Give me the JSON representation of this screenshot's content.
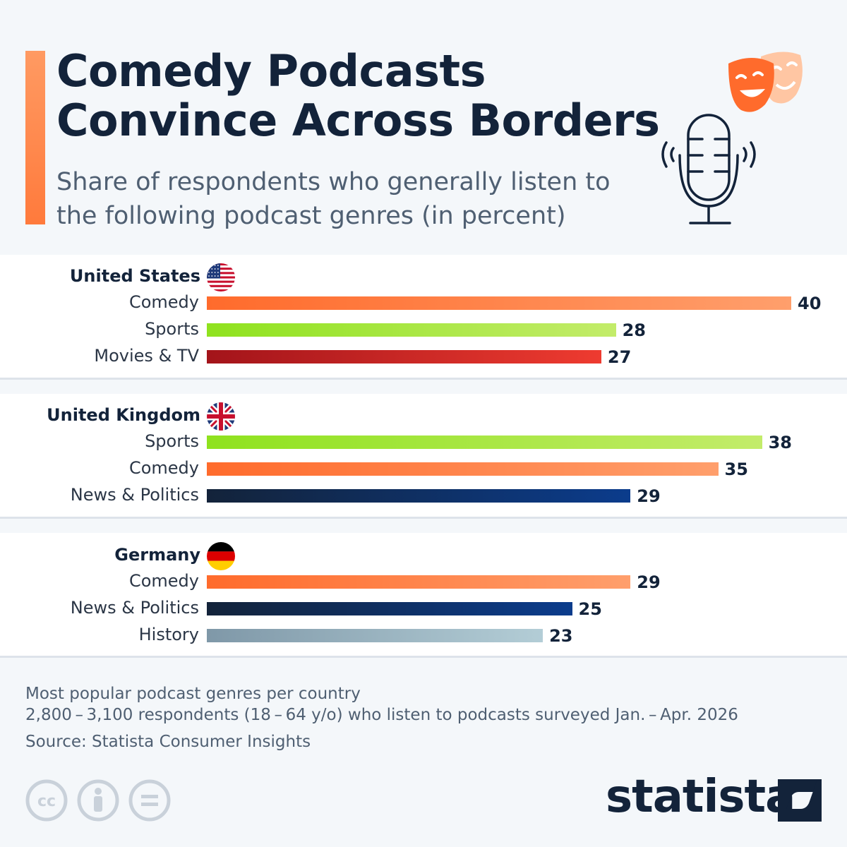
{
  "title_line1": "Comedy Podcasts",
  "title_line2": "Convince Across Borders",
  "subtitle_line1": "Share of respondents who generally listen to",
  "subtitle_line2": "the following podcast genres (in percent)",
  "colors": {
    "Comedy": [
      "#ff6b2c",
      "#ff9f6c"
    ],
    "Sports": [
      "#8fe21e",
      "#c3ec6a"
    ],
    "Movies & TV": [
      "#a3141a",
      "#ee3b30"
    ],
    "News & Politics": [
      "#13233a",
      "#0b3c8c"
    ],
    "History": [
      "#7f98a8",
      "#b3cdd6"
    ]
  },
  "chart_data": {
    "type": "bar",
    "title": "Comedy Podcasts Convince Across Borders",
    "subtitle": "Share of respondents who generally listen to the following podcast genres (in percent)",
    "groups": [
      {
        "country": "United States",
        "flag": "us-flag-icon",
        "categories": [
          "Comedy",
          "Sports",
          "Movies & TV"
        ],
        "values": [
          40,
          28,
          27
        ]
      },
      {
        "country": "United Kingdom",
        "flag": "uk-flag-icon",
        "categories": [
          "Sports",
          "Comedy",
          "News & Politics"
        ],
        "values": [
          38,
          35,
          29
        ]
      },
      {
        "country": "Germany",
        "flag": "germany-flag-icon",
        "categories": [
          "Comedy",
          "News & Politics",
          "History"
        ],
        "values": [
          29,
          25,
          23
        ]
      }
    ]
  },
  "footer": {
    "note": "Most popular podcast genres per country",
    "sample": "2,800 – 3,100 respondents (18 – 64 y/o) who listen to podcasts surveyed Jan. – Apr. 2026",
    "source": "Source: Statista Consumer Insights"
  },
  "brand": "statista",
  "icons": [
    "cc-icon",
    "attribution-icon",
    "no-derivatives-icon",
    "microphone-icon",
    "theater-masks-icon",
    "statista-logo-icon"
  ]
}
